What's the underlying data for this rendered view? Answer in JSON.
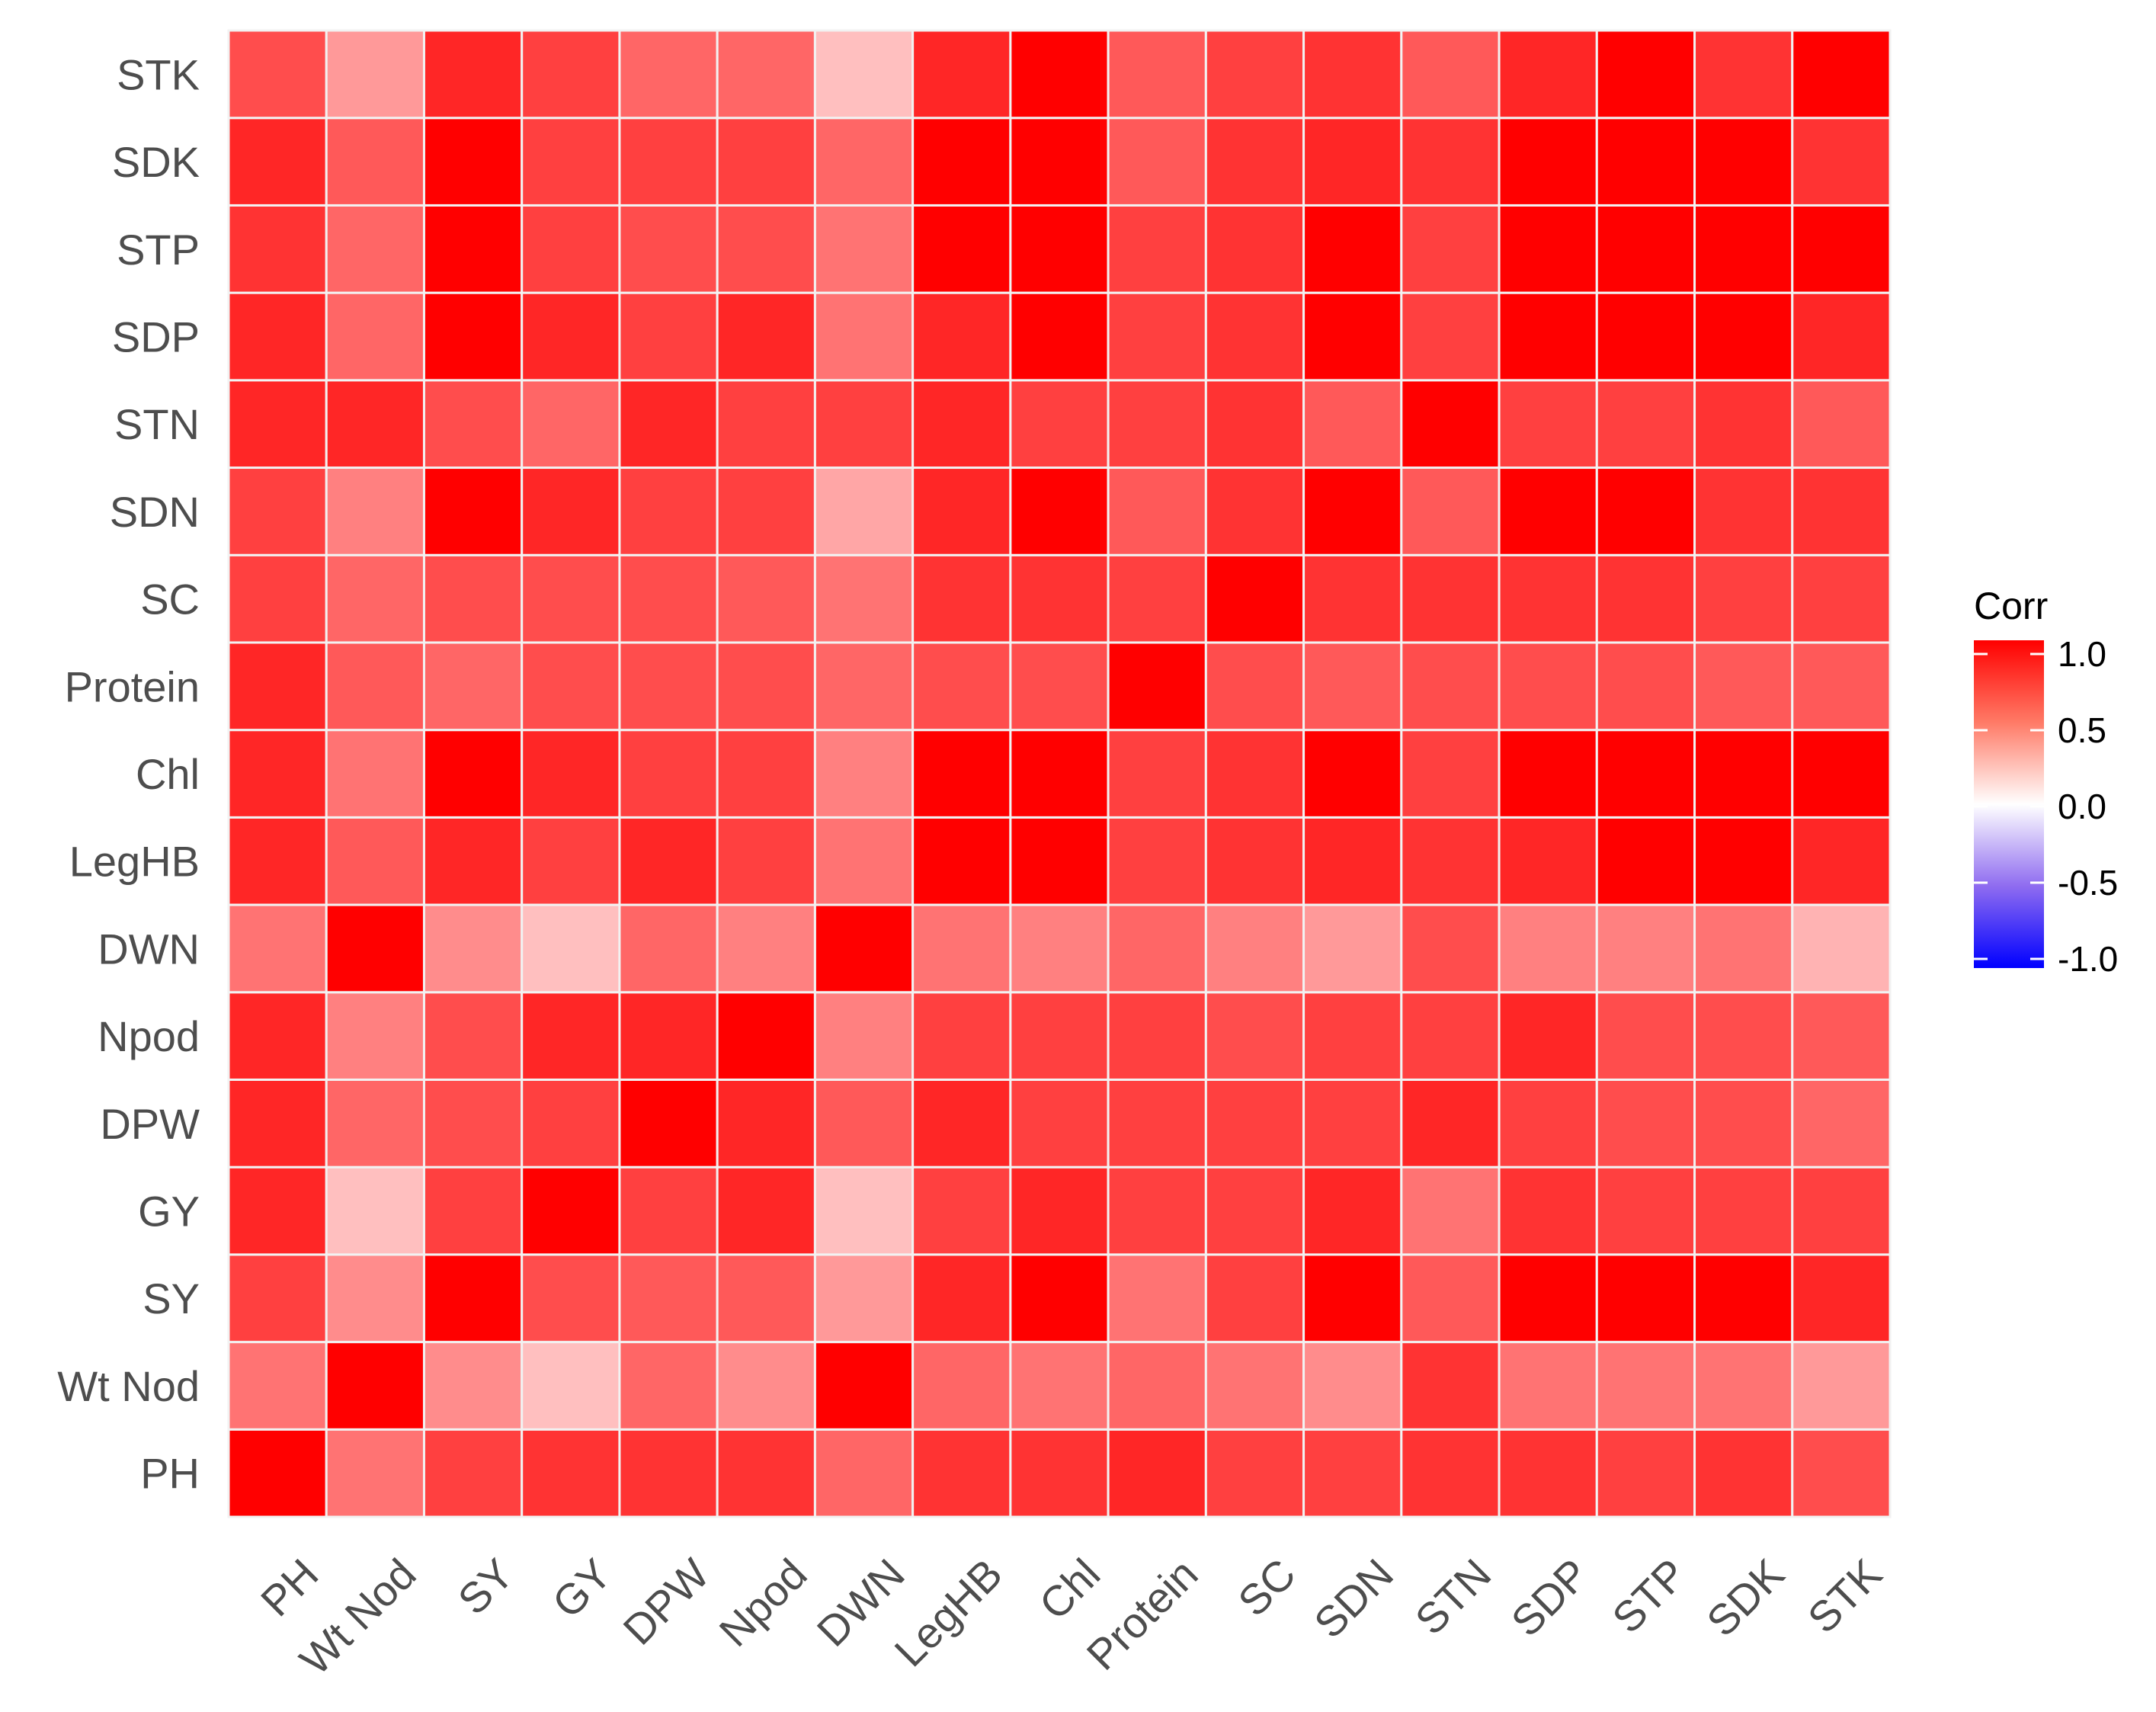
{
  "chart_data": {
    "type": "heatmap",
    "title": "",
    "xlabel": "",
    "ylabel": "",
    "x_categories": [
      "PH",
      "Wt Nod",
      "SY",
      "GY",
      "DPW",
      "Npod",
      "DWN",
      "LegHB",
      "Chl",
      "Protein",
      "SC",
      "SDN",
      "STN",
      "SDP",
      "STP",
      "SDK",
      "STK"
    ],
    "y_categories": [
      "PH",
      "Wt Nod",
      "SY",
      "GY",
      "DPW",
      "Npod",
      "DWN",
      "LegHB",
      "Chl",
      "Protein",
      "SC",
      "SDN",
      "STN",
      "SDP",
      "STP",
      "SDK",
      "STK"
    ],
    "values": [
      [
        1.0,
        0.55,
        0.75,
        0.8,
        0.8,
        0.8,
        0.6,
        0.8,
        0.8,
        0.85,
        0.75,
        0.75,
        0.8,
        0.8,
        0.75,
        0.8,
        0.7
      ],
      [
        0.55,
        1.0,
        0.45,
        0.25,
        0.6,
        0.45,
        1.0,
        0.6,
        0.55,
        0.6,
        0.55,
        0.45,
        0.8,
        0.55,
        0.55,
        0.55,
        0.4
      ],
      [
        0.75,
        0.45,
        1.0,
        0.7,
        0.65,
        0.65,
        0.4,
        0.85,
        1.0,
        0.55,
        0.75,
        1.0,
        0.65,
        1.0,
        1.0,
        1.0,
        0.85
      ],
      [
        0.85,
        0.25,
        0.75,
        1.0,
        0.75,
        0.85,
        0.25,
        0.75,
        0.85,
        0.75,
        0.75,
        0.85,
        0.55,
        0.8,
        0.75,
        0.75,
        0.75
      ],
      [
        0.85,
        0.6,
        0.7,
        0.75,
        1.0,
        0.85,
        0.65,
        0.85,
        0.75,
        0.75,
        0.75,
        0.75,
        0.85,
        0.75,
        0.7,
        0.7,
        0.6
      ],
      [
        0.85,
        0.5,
        0.7,
        0.85,
        0.85,
        1.0,
        0.5,
        0.75,
        0.75,
        0.75,
        0.7,
        0.75,
        0.75,
        0.85,
        0.7,
        0.7,
        0.65
      ],
      [
        0.55,
        1.0,
        0.45,
        0.25,
        0.6,
        0.5,
        1.0,
        0.55,
        0.5,
        0.6,
        0.5,
        0.4,
        0.7,
        0.5,
        0.5,
        0.55,
        0.3
      ],
      [
        0.85,
        0.65,
        0.85,
        0.75,
        0.85,
        0.75,
        0.55,
        1.0,
        1.0,
        0.75,
        0.8,
        0.85,
        0.8,
        0.85,
        1.0,
        1.0,
        0.85
      ],
      [
        0.85,
        0.55,
        1.0,
        0.85,
        0.75,
        0.75,
        0.5,
        1.0,
        1.0,
        0.75,
        0.8,
        1.0,
        0.75,
        1.0,
        1.0,
        1.0,
        1.0
      ],
      [
        0.85,
        0.65,
        0.6,
        0.7,
        0.7,
        0.7,
        0.6,
        0.7,
        0.7,
        1.0,
        0.7,
        0.65,
        0.7,
        0.7,
        0.7,
        0.65,
        0.65
      ],
      [
        0.75,
        0.6,
        0.7,
        0.7,
        0.7,
        0.65,
        0.55,
        0.8,
        0.8,
        0.75,
        1.0,
        0.8,
        0.8,
        0.8,
        0.8,
        0.75,
        0.75
      ],
      [
        0.75,
        0.5,
        1.0,
        0.85,
        0.75,
        0.75,
        0.35,
        0.85,
        1.0,
        0.65,
        0.8,
        1.0,
        0.65,
        1.0,
        1.0,
        0.8,
        0.8
      ],
      [
        0.85,
        0.85,
        0.7,
        0.6,
        0.85,
        0.75,
        0.75,
        0.85,
        0.75,
        0.75,
        0.8,
        0.65,
        1.0,
        0.75,
        0.75,
        0.8,
        0.65
      ],
      [
        0.85,
        0.6,
        1.0,
        0.85,
        0.75,
        0.85,
        0.55,
        0.85,
        1.0,
        0.75,
        0.8,
        1.0,
        0.75,
        1.0,
        1.0,
        1.0,
        0.85
      ],
      [
        0.8,
        0.6,
        1.0,
        0.75,
        0.7,
        0.7,
        0.55,
        1.0,
        1.0,
        0.75,
        0.8,
        1.0,
        0.75,
        1.0,
        1.0,
        1.0,
        1.0
      ],
      [
        0.85,
        0.65,
        1.0,
        0.75,
        0.75,
        0.75,
        0.6,
        1.0,
        1.0,
        0.65,
        0.8,
        0.85,
        0.8,
        1.0,
        1.0,
        1.0,
        0.8
      ],
      [
        0.7,
        0.4,
        0.85,
        0.75,
        0.6,
        0.6,
        0.25,
        0.85,
        1.0,
        0.65,
        0.75,
        0.8,
        0.65,
        0.85,
        1.0,
        0.8,
        1.0
      ]
    ],
    "color_scale": {
      "low": "#0000ff",
      "mid": "#ffffff",
      "high": "#ff0000",
      "limits": [
        -1,
        1
      ]
    },
    "legend": {
      "title": "Corr",
      "position": "right",
      "ticks": [
        "1.0",
        "0.5",
        "0.0",
        "-0.5",
        "-1.0"
      ]
    },
    "grid": true
  }
}
